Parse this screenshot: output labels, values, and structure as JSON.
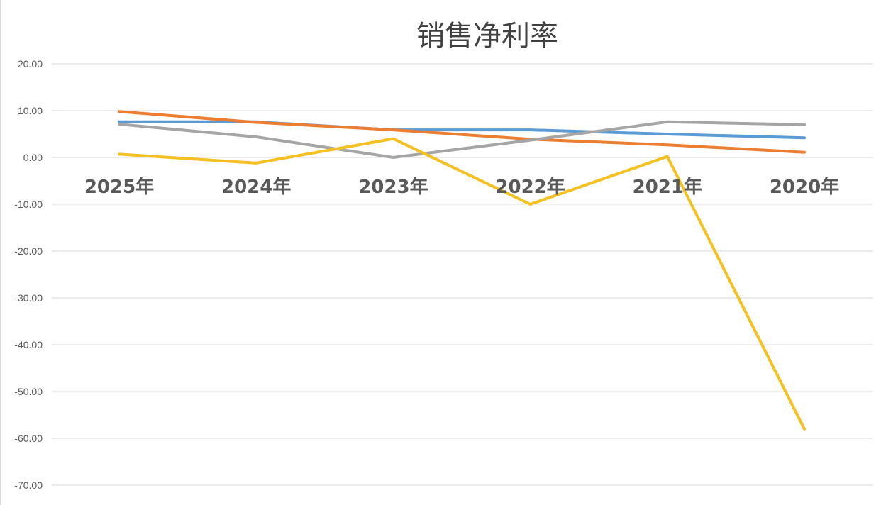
{
  "chart_data": {
    "type": "line",
    "title": "销售净利率",
    "categories": [
      "2025年",
      "2024年",
      "2023年",
      "2022年",
      "2021年",
      "2020年"
    ],
    "ylim": [
      -70,
      20
    ],
    "yticks": [
      "20.00",
      "10.00",
      "0.00",
      "-10.00",
      "-20.00",
      "-30.00",
      "-40.00",
      "-50.00",
      "-60.00",
      "-70.00"
    ],
    "grid": true,
    "series": [
      {
        "values": [
          7.6,
          7.6,
          5.9,
          5.9,
          5.0,
          4.2
        ],
        "color": "#5b9bd5"
      },
      {
        "values": [
          9.8,
          7.5,
          5.9,
          3.9,
          2.7,
          1.1
        ],
        "color": "#ed7d31"
      },
      {
        "values": [
          7.1,
          4.4,
          0.0,
          3.7,
          7.6,
          7.0
        ],
        "color": "#a5a5a5"
      },
      {
        "values": [
          0.7,
          -1.2,
          4.0,
          -10.0,
          0.2,
          -58.0
        ],
        "color": "#f5c022"
      }
    ]
  }
}
